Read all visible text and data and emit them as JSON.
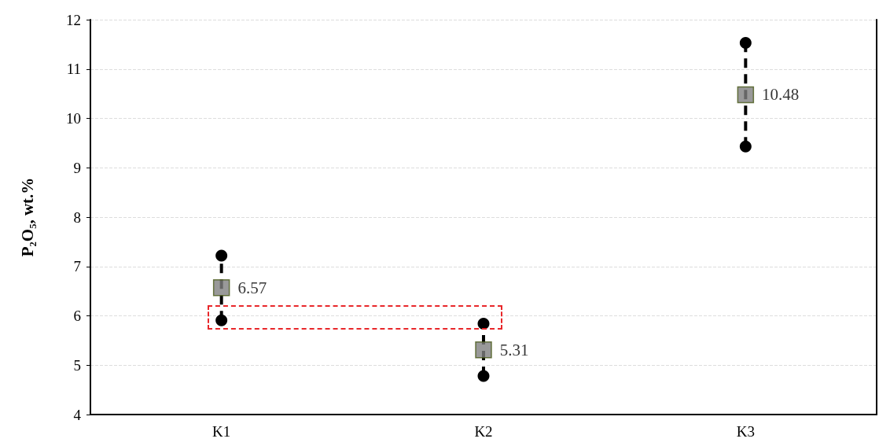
{
  "chart_data": {
    "type": "scatter",
    "ylabel": "P₂O₅, wt.%",
    "categories": [
      "K1",
      "K2",
      "K3"
    ],
    "series": [
      {
        "type": "line",
        "color": "#000000",
        "x": [
          "K1",
          "K1"
        ],
        "values": [
          5.91,
          7.22
        ]
      },
      {
        "type": "line",
        "color": "#000000",
        "x": [
          "K2",
          "K2"
        ],
        "values": [
          4.78,
          5.84
        ]
      },
      {
        "type": "line",
        "color": "#000000",
        "x": [
          "K3",
          "K3"
        ],
        "values": [
          9.43,
          11.53
        ]
      },
      {
        "color": "#808080",
        "marker": "square",
        "data_labels": true,
        "values": [
          6.57,
          5.31,
          10.48
        ]
      }
    ],
    "ylim": [
      4,
      12
    ],
    "yticks": [
      4,
      5,
      6,
      7,
      8,
      9,
      10,
      11,
      12
    ],
    "grid": "y",
    "marker": "circle",
    "line_style": "dashed"
  }
}
